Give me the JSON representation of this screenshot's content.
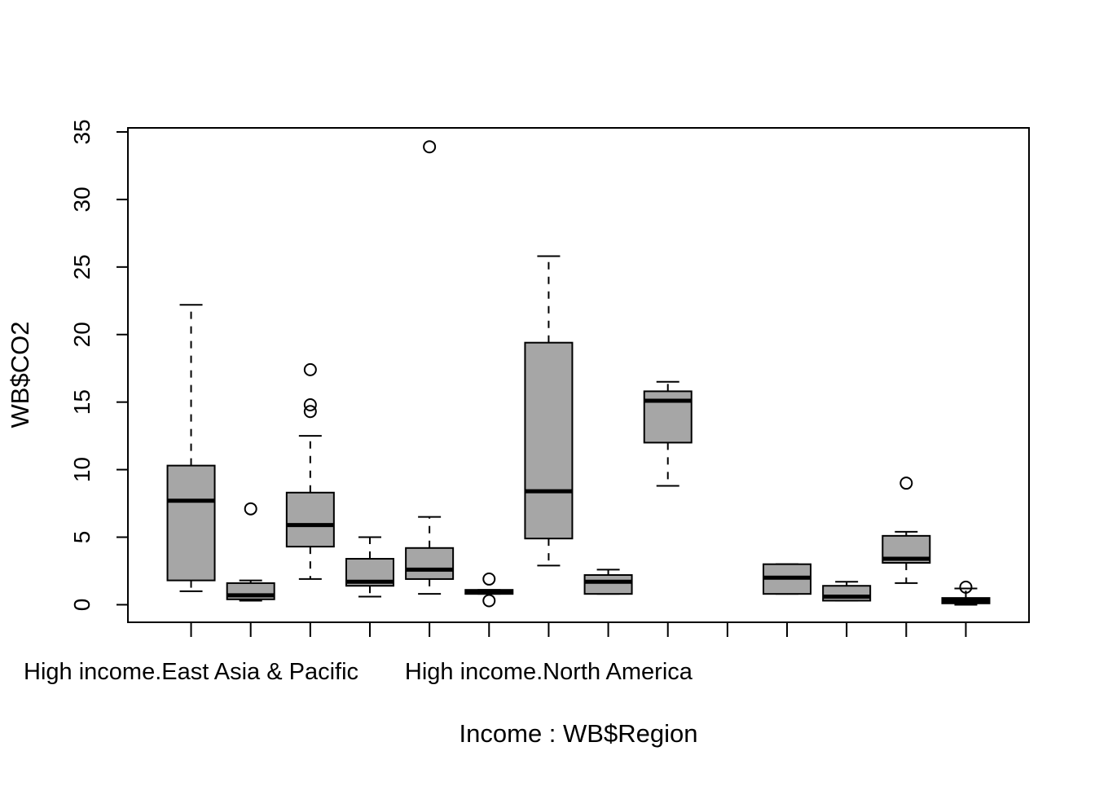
{
  "chart_data": {
    "type": "boxplot",
    "title": "",
    "xlabel": "Income : WB$Region",
    "ylabel": "WB$CO2",
    "ylim": [
      -1.3,
      35.3
    ],
    "yticks": [
      0,
      5,
      10,
      15,
      20,
      25,
      30,
      35
    ],
    "tick_labels": [
      "High income.East Asia & Pacific",
      "",
      "",
      "",
      "",
      "",
      "High income.North America",
      "",
      "",
      "",
      "",
      "",
      "",
      ""
    ],
    "groups": [
      {
        "q1": 1.8,
        "median": 7.7,
        "q3": 10.3,
        "whisker_low": 1.0,
        "whisker_high": 22.2,
        "outliers": []
      },
      {
        "q1": 0.4,
        "median": 0.7,
        "q3": 1.6,
        "whisker_low": 0.3,
        "whisker_high": 1.8,
        "outliers": [
          7.1
        ]
      },
      {
        "q1": 4.3,
        "median": 5.9,
        "q3": 8.3,
        "whisker_low": 1.9,
        "whisker_high": 12.5,
        "outliers": [
          14.3,
          14.8,
          17.4
        ]
      },
      {
        "q1": 1.4,
        "median": 1.7,
        "q3": 3.4,
        "whisker_low": 0.6,
        "whisker_high": 5.0,
        "outliers": []
      },
      {
        "q1": 1.9,
        "median": 2.6,
        "q3": 4.2,
        "whisker_low": 0.8,
        "whisker_high": 6.5,
        "outliers": [
          33.9
        ]
      },
      {
        "q1": 0.8,
        "median": 0.9,
        "q3": 1.1,
        "whisker_low": 0.8,
        "whisker_high": 1.1,
        "outliers": [
          0.3,
          1.9
        ]
      },
      {
        "q1": 4.9,
        "median": 8.4,
        "q3": 19.4,
        "whisker_low": 2.9,
        "whisker_high": 25.8,
        "outliers": []
      },
      {
        "q1": 0.8,
        "median": 1.7,
        "q3": 2.2,
        "whisker_low": 0.8,
        "whisker_high": 2.6,
        "outliers": []
      },
      {
        "q1": 12.0,
        "median": 15.1,
        "q3": 15.8,
        "whisker_low": 8.8,
        "whisker_high": 16.5,
        "outliers": []
      },
      null,
      {
        "q1": 0.8,
        "median": 2.0,
        "q3": 3.0,
        "whisker_low": 0.8,
        "whisker_high": 3.0,
        "outliers": []
      },
      {
        "q1": 0.3,
        "median": 0.6,
        "q3": 1.4,
        "whisker_low": 0.3,
        "whisker_high": 1.7,
        "outliers": []
      },
      {
        "q1": 3.1,
        "median": 3.4,
        "q3": 5.1,
        "whisker_low": 1.6,
        "whisker_high": 5.4,
        "outliers": [
          9.0
        ]
      },
      {
        "q1": 0.1,
        "median": 0.3,
        "q3": 0.5,
        "whisker_low": 0.0,
        "whisker_high": 1.2,
        "outliers": [
          1.3
        ]
      }
    ],
    "box_fill": "#a6a6a6",
    "grid": false,
    "legend": "none"
  }
}
